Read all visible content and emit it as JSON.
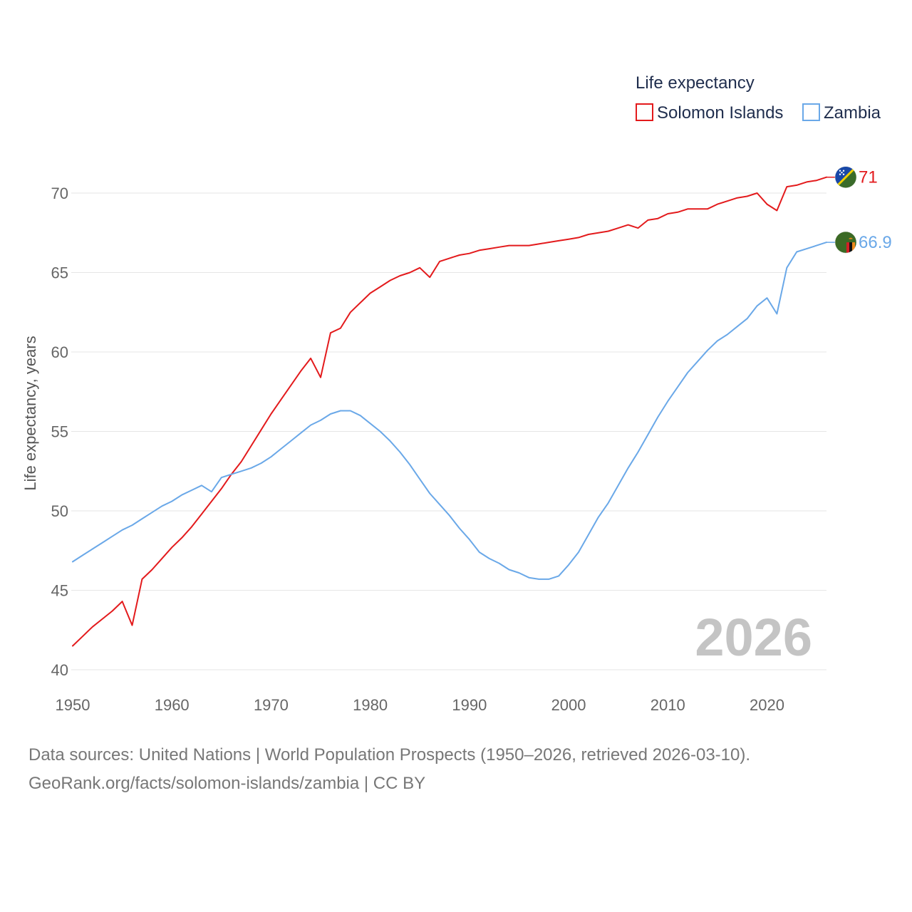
{
  "chart_data": {
    "type": "line",
    "title": "",
    "watermark_year": "2026",
    "legend_title": "Life expectancy",
    "ylabel": "Life expectancy, years",
    "xlabel": "",
    "xlim": [
      1950,
      2026
    ],
    "ylim": [
      40,
      72
    ],
    "x_ticks": [
      "1950",
      "1960",
      "1970",
      "1980",
      "1990",
      "2000",
      "2010",
      "2020"
    ],
    "y_ticks": [
      "40",
      "45",
      "50",
      "55",
      "60",
      "65",
      "70"
    ],
    "series": [
      {
        "name": "Solomon Islands",
        "color": "#e31a1c",
        "end_label": "71",
        "flag_icon": "solomon-islands-flag-icon",
        "x": [
          1950,
          1951,
          1952,
          1953,
          1954,
          1955,
          1956,
          1957,
          1958,
          1959,
          1960,
          1961,
          1962,
          1963,
          1964,
          1965,
          1966,
          1967,
          1968,
          1969,
          1970,
          1971,
          1972,
          1973,
          1974,
          1975,
          1976,
          1977,
          1978,
          1979,
          1980,
          1981,
          1982,
          1983,
          1984,
          1985,
          1986,
          1987,
          1988,
          1989,
          1990,
          1991,
          1992,
          1993,
          1994,
          1995,
          1996,
          1997,
          1998,
          1999,
          2000,
          2001,
          2002,
          2003,
          2004,
          2005,
          2006,
          2007,
          2008,
          2009,
          2010,
          2011,
          2012,
          2013,
          2014,
          2015,
          2016,
          2017,
          2018,
          2019,
          2020,
          2021,
          2022,
          2023,
          2024,
          2025,
          2026
        ],
        "values": [
          41.5,
          42.1,
          42.7,
          43.2,
          43.7,
          44.3,
          42.8,
          45.7,
          46.3,
          47.0,
          47.7,
          48.3,
          49.0,
          49.8,
          50.6,
          51.4,
          52.3,
          53.1,
          54.1,
          55.1,
          56.1,
          57.0,
          57.9,
          58.8,
          59.6,
          58.4,
          61.2,
          61.5,
          62.5,
          63.1,
          63.7,
          64.1,
          64.5,
          64.8,
          65.0,
          65.3,
          64.7,
          65.7,
          65.9,
          66.1,
          66.2,
          66.4,
          66.5,
          66.6,
          66.7,
          66.7,
          66.7,
          66.8,
          66.9,
          67.0,
          67.1,
          67.2,
          67.4,
          67.5,
          67.6,
          67.8,
          68.0,
          67.8,
          68.3,
          68.4,
          68.7,
          68.8,
          69.0,
          69.0,
          69.0,
          69.3,
          69.5,
          69.7,
          69.8,
          70.0,
          69.3,
          68.9,
          70.4,
          70.5,
          70.7,
          70.8,
          71.0
        ]
      },
      {
        "name": "Zambia",
        "color": "#6aa8e8",
        "end_label": "66.9",
        "flag_icon": "zambia-flag-icon",
        "x": [
          1950,
          1951,
          1952,
          1953,
          1954,
          1955,
          1956,
          1957,
          1958,
          1959,
          1960,
          1961,
          1962,
          1963,
          1964,
          1965,
          1966,
          1967,
          1968,
          1969,
          1970,
          1971,
          1972,
          1973,
          1974,
          1975,
          1976,
          1977,
          1978,
          1979,
          1980,
          1981,
          1982,
          1983,
          1984,
          1985,
          1986,
          1987,
          1988,
          1989,
          1990,
          1991,
          1992,
          1993,
          1994,
          1995,
          1996,
          1997,
          1998,
          1999,
          2000,
          2001,
          2002,
          2003,
          2004,
          2005,
          2006,
          2007,
          2008,
          2009,
          2010,
          2011,
          2012,
          2013,
          2014,
          2015,
          2016,
          2017,
          2018,
          2019,
          2020,
          2021,
          2022,
          2023,
          2024,
          2025,
          2026
        ],
        "values": [
          46.8,
          47.2,
          47.6,
          48.0,
          48.4,
          48.8,
          49.1,
          49.5,
          49.9,
          50.3,
          50.6,
          51.0,
          51.3,
          51.6,
          51.2,
          52.1,
          52.3,
          52.5,
          52.7,
          53.0,
          53.4,
          53.9,
          54.4,
          54.9,
          55.4,
          55.7,
          56.1,
          56.3,
          56.3,
          56.0,
          55.5,
          55.0,
          54.4,
          53.7,
          52.9,
          52.0,
          51.1,
          50.4,
          49.7,
          48.9,
          48.2,
          47.4,
          47.0,
          46.7,
          46.3,
          46.1,
          45.8,
          45.7,
          45.7,
          45.9,
          46.6,
          47.4,
          48.5,
          49.6,
          50.5,
          51.6,
          52.7,
          53.7,
          54.8,
          55.9,
          56.9,
          57.8,
          58.7,
          59.4,
          60.1,
          60.7,
          61.1,
          61.6,
          62.1,
          62.9,
          63.4,
          62.4,
          65.3,
          66.3,
          66.5,
          66.7,
          66.9
        ]
      }
    ]
  },
  "footer": {
    "line1": "Data sources: United Nations | World Population Prospects (1950–2026, retrieved 2026-03-10).",
    "line2": "GeoRank.org/facts/solomon-islands/zambia | CC BY"
  }
}
